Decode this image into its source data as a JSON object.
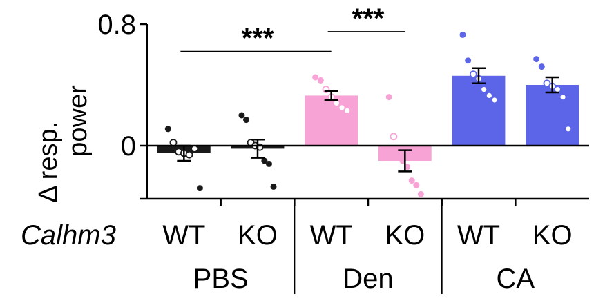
{
  "chart_data": {
    "type": "bar",
    "ylabel_line1": "Δ resp.",
    "ylabel_line2": "power",
    "ylim": [
      -0.35,
      0.8
    ],
    "yticks": [
      {
        "value": 0.8,
        "label": "0.8"
      },
      {
        "value": 0,
        "label": "0"
      }
    ],
    "gene_label": "Calhm3",
    "group_labels": [
      "PBS",
      "Den",
      "CA"
    ],
    "bars": [
      {
        "genotype": "WT",
        "group": "PBS",
        "value": -0.05,
        "sem": 0.05,
        "color": "#1a1a1a",
        "points": [
          0.11,
          0.02,
          -0.04,
          -0.05,
          -0.06,
          -0.02,
          -0.28
        ],
        "hollow": [
          false,
          true,
          true,
          true,
          true,
          true,
          false
        ]
      },
      {
        "genotype": "KO",
        "group": "PBS",
        "value": -0.02,
        "sem": 0.06,
        "color": "#1a1a1a",
        "points": [
          0.2,
          0.17,
          0.02,
          0.0,
          -0.01,
          -0.1,
          -0.12,
          -0.27
        ],
        "hollow": [
          false,
          false,
          true,
          true,
          true,
          false,
          false,
          false
        ]
      },
      {
        "genotype": "WT",
        "group": "Den",
        "value": 0.33,
        "sem": 0.03,
        "color": "#f7a3d6",
        "points": [
          0.45,
          0.43,
          0.37,
          0.32,
          0.28,
          0.25,
          0.23
        ],
        "hollow": [
          false,
          false,
          true,
          true,
          true,
          true,
          true
        ]
      },
      {
        "genotype": "KO",
        "group": "Den",
        "value": -0.1,
        "sem": 0.07,
        "color": "#f7a3d6",
        "points": [
          0.32,
          0.06,
          -0.04,
          -0.1,
          -0.14,
          -0.23,
          -0.26,
          -0.32
        ],
        "hollow": [
          false,
          true,
          false,
          false,
          false,
          false,
          false,
          false
        ]
      },
      {
        "genotype": "WT",
        "group": "CA",
        "value": 0.46,
        "sem": 0.05,
        "color": "#5c65e8",
        "points": [
          0.73,
          0.56,
          0.47,
          0.44,
          0.37,
          0.33,
          0.3
        ],
        "hollow": [
          false,
          false,
          true,
          true,
          true,
          true,
          true
        ]
      },
      {
        "genotype": "KO",
        "group": "CA",
        "value": 0.4,
        "sem": 0.05,
        "color": "#5c65e8",
        "points": [
          0.57,
          0.52,
          0.41,
          0.39,
          0.37,
          0.32,
          0.11
        ],
        "hollow": [
          false,
          false,
          true,
          true,
          true,
          true,
          true
        ]
      }
    ],
    "significance": [
      {
        "from": 0,
        "to": 2,
        "label": "***",
        "y": 0.62
      },
      {
        "from": 2,
        "to": 3,
        "label": "***",
        "y": 0.75
      }
    ]
  }
}
